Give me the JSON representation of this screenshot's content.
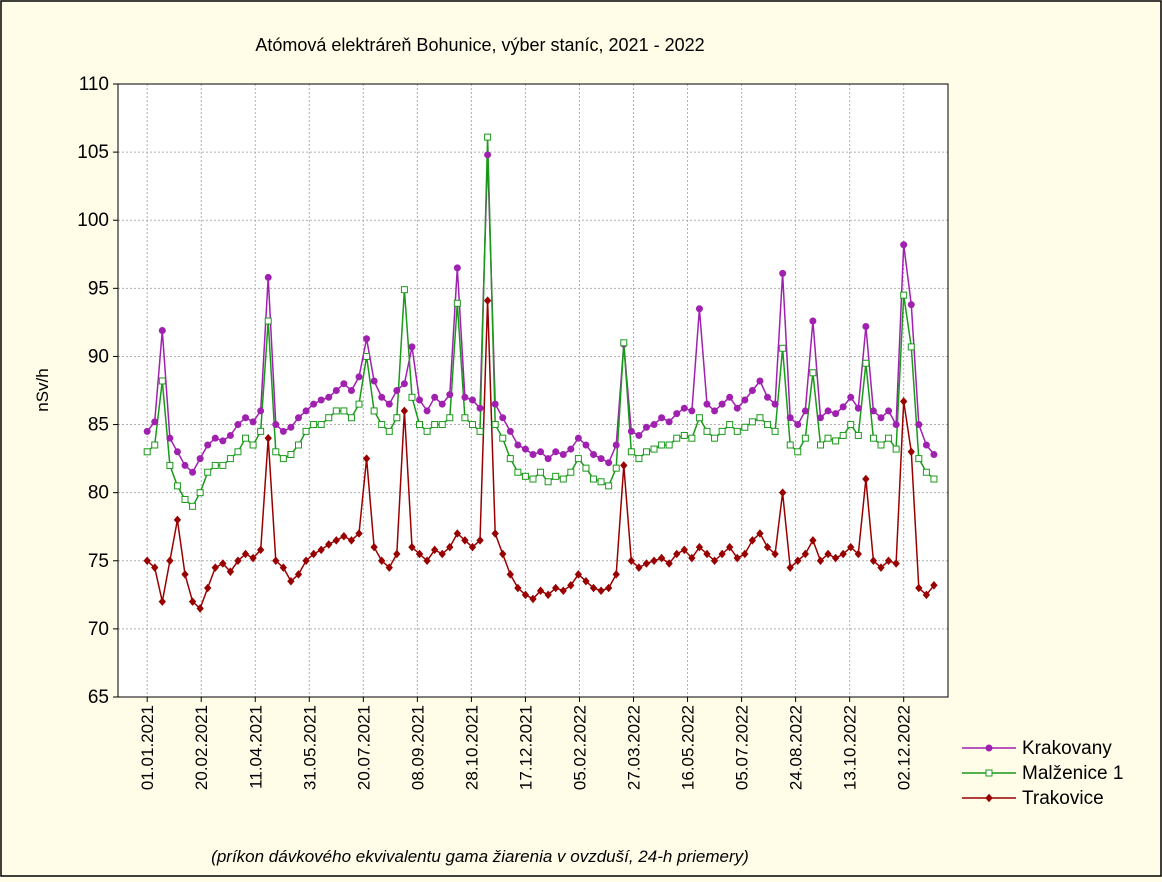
{
  "chart_data": {
    "type": "line",
    "title": "Atómová elektráreň Bohunice, výber staníc, 2021 - 2022",
    "y_label": "nSv/h",
    "annotation": "(príkon dávkového ekvivalentu gama žiarenia v ovzduší, 24-h priemery)",
    "x": [
      "2021-01-01",
      "2021-01-08",
      "2021-01-15",
      "2021-01-22",
      "2021-01-29",
      "2021-02-05",
      "2021-02-12",
      "2021-02-19",
      "2021-02-26",
      "2021-03-05",
      "2021-03-12",
      "2021-03-19",
      "2021-03-26",
      "2021-04-02",
      "2021-04-09",
      "2021-04-16",
      "2021-04-23",
      "2021-04-30",
      "2021-05-07",
      "2021-05-14",
      "2021-05-21",
      "2021-05-28",
      "2021-06-04",
      "2021-06-11",
      "2021-06-18",
      "2021-06-25",
      "2021-07-02",
      "2021-07-09",
      "2021-07-16",
      "2021-07-23",
      "2021-07-30",
      "2021-08-06",
      "2021-08-13",
      "2021-08-20",
      "2021-08-27",
      "2021-09-03",
      "2021-09-10",
      "2021-09-17",
      "2021-09-24",
      "2021-10-01",
      "2021-10-08",
      "2021-10-15",
      "2021-10-22",
      "2021-10-29",
      "2021-11-05",
      "2021-11-12",
      "2021-11-19",
      "2021-11-26",
      "2021-12-03",
      "2021-12-10",
      "2021-12-17",
      "2021-12-24",
      "2021-12-31",
      "2022-01-07",
      "2022-01-14",
      "2022-01-21",
      "2022-01-28",
      "2022-02-04",
      "2022-02-11",
      "2022-02-18",
      "2022-02-25",
      "2022-03-04",
      "2022-03-11",
      "2022-03-18",
      "2022-03-25",
      "2022-04-01",
      "2022-04-08",
      "2022-04-15",
      "2022-04-22",
      "2022-04-29",
      "2022-05-06",
      "2022-05-13",
      "2022-05-20",
      "2022-05-27",
      "2022-06-03",
      "2022-06-10",
      "2022-06-17",
      "2022-06-24",
      "2022-07-01",
      "2022-07-08",
      "2022-07-15",
      "2022-07-22",
      "2022-07-29",
      "2022-08-05",
      "2022-08-12",
      "2022-08-19",
      "2022-08-26",
      "2022-09-02",
      "2022-09-09",
      "2022-09-16",
      "2022-09-23",
      "2022-09-30",
      "2022-10-07",
      "2022-10-14",
      "2022-10-21",
      "2022-10-28",
      "2022-11-04",
      "2022-11-11",
      "2022-11-18",
      "2022-11-25",
      "2022-12-02",
      "2022-12-09",
      "2022-12-16",
      "2022-12-23",
      "2022-12-30"
    ],
    "series": [
      {
        "name": "Krakovany",
        "color": "#a020b0",
        "marker": "circle",
        "values": [
          84.5,
          85.2,
          91.9,
          84,
          83,
          82,
          81.5,
          82.5,
          83.5,
          84,
          83.8,
          84.2,
          85,
          85.5,
          85.2,
          86,
          95.8,
          85,
          84.5,
          84.8,
          85.5,
          86,
          86.5,
          86.8,
          87,
          87.5,
          88,
          87.5,
          88.5,
          91.3,
          88.2,
          87,
          86.5,
          87.5,
          88,
          90.7,
          86.8,
          86,
          87,
          86.5,
          87.2,
          96.5,
          87,
          86.8,
          86.2,
          104.8,
          86.5,
          85.5,
          84.5,
          83.5,
          83.2,
          82.8,
          83,
          82.5,
          83,
          82.8,
          83.2,
          84,
          83.5,
          82.8,
          82.5,
          82.2,
          83.5,
          90.9,
          84.5,
          84.2,
          84.8,
          85,
          85.5,
          85.2,
          85.8,
          86.2,
          86,
          93.5,
          86.5,
          86,
          86.5,
          87,
          86.2,
          86.8,
          87.5,
          88.2,
          87,
          86.5,
          96.1,
          85.5,
          85,
          86,
          92.6,
          85.5,
          86,
          85.8,
          86.3,
          87,
          86.2,
          92.2,
          86,
          85.5,
          86,
          85,
          98.2,
          93.8,
          85,
          83.5,
          82.8
        ]
      },
      {
        "name": "Malženice 1",
        "color": "#1a9a1a",
        "marker": "square",
        "values": [
          83,
          83.5,
          88.2,
          82,
          80.5,
          79.5,
          79,
          80,
          81.5,
          82,
          82,
          82.5,
          83,
          84,
          83.5,
          84.5,
          92.6,
          83,
          82.5,
          82.8,
          83.5,
          84.5,
          85,
          85,
          85.5,
          86,
          86,
          85.5,
          86.5,
          90,
          86,
          85,
          84.5,
          85.5,
          94.9,
          87,
          85,
          84.5,
          85,
          85,
          85.5,
          93.9,
          85.5,
          85,
          84.5,
          106.1,
          85,
          84,
          82.5,
          81.5,
          81.2,
          81,
          81.5,
          80.8,
          81.2,
          81,
          81.5,
          82.5,
          81.8,
          81,
          80.8,
          80.5,
          81.8,
          91,
          83,
          82.5,
          83,
          83.2,
          83.5,
          83.5,
          84,
          84.2,
          84,
          85.5,
          84.5,
          84,
          84.5,
          85,
          84.5,
          84.8,
          85.2,
          85.5,
          85,
          84.5,
          90.6,
          83.5,
          83,
          84,
          88.8,
          83.5,
          84,
          83.8,
          84.2,
          85,
          84.2,
          89.5,
          84,
          83.5,
          84,
          83.2,
          94.5,
          90.7,
          82.5,
          81.5,
          81
        ]
      },
      {
        "name": "Trakovice",
        "color": "#990000",
        "marker": "diamond",
        "values": [
          75,
          74.5,
          72,
          75,
          78,
          74,
          72,
          71.5,
          73,
          74.5,
          74.8,
          74.2,
          75,
          75.5,
          75.2,
          75.8,
          84,
          75,
          74.5,
          73.5,
          74,
          75,
          75.5,
          75.8,
          76.2,
          76.5,
          76.8,
          76.5,
          77,
          82.5,
          76,
          75,
          74.5,
          75.5,
          86,
          76,
          75.5,
          75,
          75.8,
          75.5,
          76,
          77,
          76.5,
          76,
          76.5,
          94.1,
          77,
          75.5,
          74,
          73,
          72.5,
          72.2,
          72.8,
          72.5,
          73,
          72.8,
          73.2,
          74,
          73.5,
          73,
          72.8,
          73,
          74,
          82,
          75,
          74.5,
          74.8,
          75,
          75.2,
          74.8,
          75.5,
          75.8,
          75.2,
          76,
          75.5,
          75,
          75.5,
          76,
          75.2,
          75.5,
          76.5,
          77,
          76,
          75.5,
          80,
          74.5,
          75,
          75.5,
          76.5,
          75,
          75.5,
          75.2,
          75.5,
          76,
          75.5,
          81,
          75,
          74.5,
          75,
          74.8,
          86.7,
          83,
          73,
          72.5,
          73.2
        ]
      }
    ],
    "xlim": [
      "2020-12-05",
      "2023-01-12"
    ],
    "xticks": [
      {
        "value": "2021-01-01",
        "label": "01.01.2021"
      },
      {
        "value": "2021-02-20",
        "label": "20.02.2021"
      },
      {
        "value": "2021-04-11",
        "label": "11.04.2021"
      },
      {
        "value": "2021-05-31",
        "label": "31.05.2021"
      },
      {
        "value": "2021-07-20",
        "label": "20.07.2021"
      },
      {
        "value": "2021-09-08",
        "label": "08.09.2021"
      },
      {
        "value": "2021-10-28",
        "label": "28.10.2021"
      },
      {
        "value": "2021-12-17",
        "label": "17.12.2021"
      },
      {
        "value": "2022-02-05",
        "label": "05.02.2022"
      },
      {
        "value": "2022-03-27",
        "label": "27.03.2022"
      },
      {
        "value": "2022-05-16",
        "label": "16.05.2022"
      },
      {
        "value": "2022-07-05",
        "label": "05.07.2022"
      },
      {
        "value": "2022-08-24",
        "label": "24.08.2022"
      },
      {
        "value": "2022-10-13",
        "label": "13.10.2022"
      },
      {
        "value": "2022-12-02",
        "label": "02.12.2022"
      }
    ],
    "ylim": [
      65,
      110
    ],
    "yticks": [
      65,
      70,
      75,
      80,
      85,
      90,
      95,
      100,
      105,
      110
    ],
    "grid": true,
    "legend": "right"
  }
}
